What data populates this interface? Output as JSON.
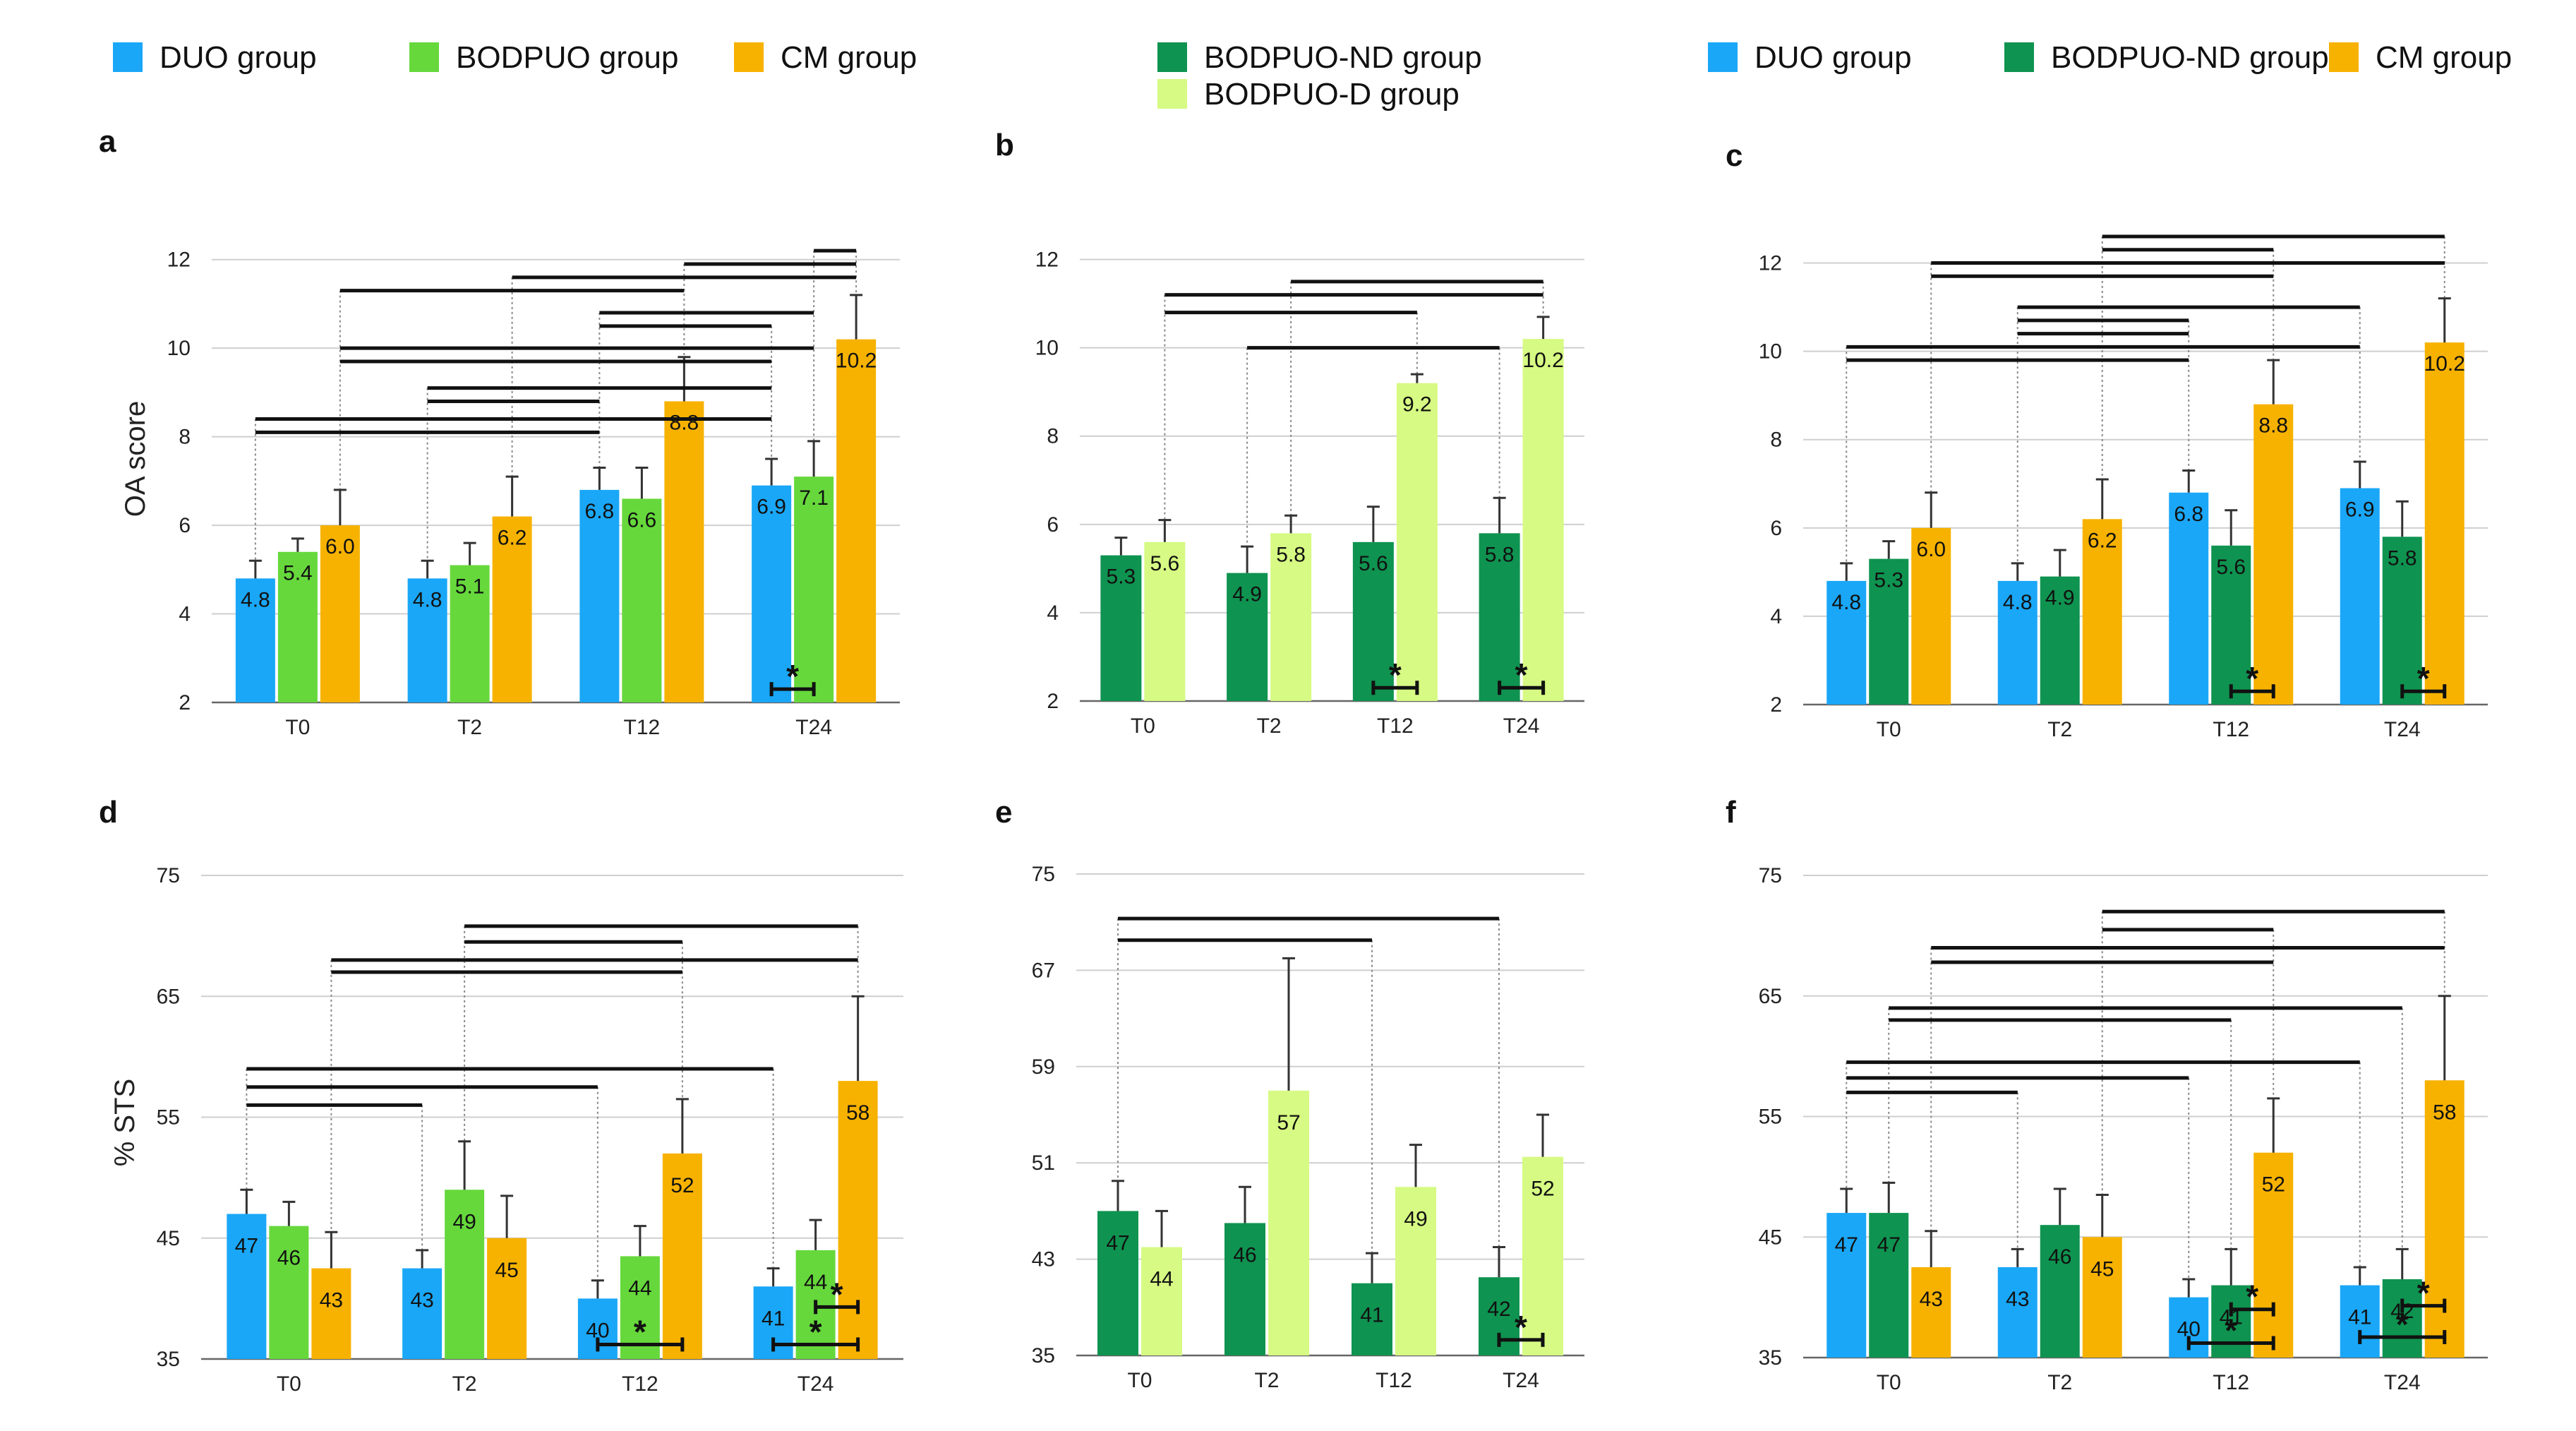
{
  "colors": {
    "DUO": "#1AA7F7",
    "BODPUO": "#66D83C",
    "CM": "#F7B200",
    "BODPUO-ND": "#0F9350",
    "BODPUO-D": "#D6FA83"
  },
  "legends": [
    {
      "entries": [
        {
          "label": "DUO group",
          "key": "DUO"
        },
        {
          "label": "BODPUO group",
          "key": "BODPUO"
        },
        {
          "label": "CM group",
          "key": "CM"
        }
      ]
    },
    {
      "entries": [
        {
          "label": "BODPUO-ND group",
          "key": "BODPUO-ND"
        },
        {
          "label": "BODPUO-D group",
          "key": "BODPUO-D"
        }
      ]
    },
    {
      "entries": [
        {
          "label": "DUO group",
          "key": "DUO"
        },
        {
          "label": "BODPUO-ND group",
          "key": "BODPUO-ND"
        },
        {
          "label": "CM group",
          "key": "CM"
        }
      ]
    }
  ],
  "chart_data": [
    {
      "panel": "a",
      "type": "bar",
      "ylabel": "OA score",
      "ylim": [
        2,
        13
      ],
      "yticks": [
        2,
        4,
        6,
        8,
        10,
        12
      ],
      "categories": [
        "T0",
        "T2",
        "T12",
        "T24"
      ],
      "series": [
        {
          "name": "DUO group",
          "key": "DUO",
          "values": [
            4.8,
            4.8,
            6.8,
            6.9
          ],
          "errors": [
            0.4,
            0.4,
            0.5,
            0.6
          ],
          "labels": [
            "4.8",
            "4.8",
            "6.8",
            "6.9"
          ]
        },
        {
          "name": "BODPUO group",
          "key": "BODPUO",
          "values": [
            5.4,
            5.1,
            6.6,
            7.1
          ],
          "errors": [
            0.3,
            0.5,
            0.7,
            0.8
          ],
          "labels": [
            "5.4",
            "5.1",
            "6.6",
            "7.1"
          ]
        },
        {
          "name": "CM group",
          "key": "CM",
          "values": [
            6.0,
            6.2,
            8.8,
            10.2
          ],
          "errors": [
            0.8,
            0.9,
            1.0,
            1.0
          ],
          "labels": [
            "6.0",
            "6.2",
            "8.8",
            "10.2"
          ]
        }
      ],
      "significance_brackets": [
        {
          "from": [
            3,
            1
          ],
          "to": [
            3,
            2
          ],
          "y": 12.2
        },
        {
          "from": [
            2,
            2
          ],
          "to": [
            3,
            2
          ],
          "y": 11.9
        },
        {
          "from": [
            1,
            2
          ],
          "to": [
            3,
            2
          ],
          "y": 11.6
        },
        {
          "from": [
            0,
            2
          ],
          "to": [
            2,
            2
          ],
          "y": 11.3
        },
        {
          "from": [
            2,
            0
          ],
          "to": [
            3,
            1
          ],
          "y": 10.8
        },
        {
          "from": [
            2,
            0
          ],
          "to": [
            3,
            0
          ],
          "y": 10.5
        },
        {
          "from": [
            0,
            2
          ],
          "to": [
            3,
            1
          ],
          "y": 10.0
        },
        {
          "from": [
            0,
            2
          ],
          "to": [
            3,
            0
          ],
          "y": 9.7
        },
        {
          "from": [
            1,
            0
          ],
          "to": [
            3,
            0
          ],
          "y": 9.1
        },
        {
          "from": [
            1,
            0
          ],
          "to": [
            2,
            0
          ],
          "y": 8.8
        },
        {
          "from": [
            0,
            0
          ],
          "to": [
            3,
            0
          ],
          "y": 8.4
        },
        {
          "from": [
            0,
            0
          ],
          "to": [
            2,
            0
          ],
          "y": 8.1
        }
      ],
      "stars": [
        {
          "cat": 3,
          "from": 0,
          "to": 1,
          "y": 2.3,
          "label": "*"
        }
      ]
    },
    {
      "panel": "b",
      "type": "bar",
      "ylabel": "",
      "ylim": [
        2,
        13
      ],
      "yticks": [
        2,
        4,
        6,
        8,
        10,
        12
      ],
      "categories": [
        "T0",
        "T2",
        "T12",
        "T24"
      ],
      "series": [
        {
          "name": "BODPUO-ND group",
          "key": "BODPUO-ND",
          "values": [
            5.3,
            4.9,
            5.6,
            5.8
          ],
          "errors": [
            0.4,
            0.6,
            0.8,
            0.8
          ],
          "labels": [
            "5.3",
            "4.9",
            "5.6",
            "5.8"
          ]
        },
        {
          "name": "BODPUO-D group",
          "key": "BODPUO-D",
          "values": [
            5.6,
            5.8,
            9.2,
            10.2
          ],
          "errors": [
            0.5,
            0.4,
            0.2,
            0.5
          ],
          "labels": [
            "5.6",
            "5.8",
            "9.2",
            "10.2"
          ]
        }
      ],
      "significance_brackets": [
        {
          "from": [
            1,
            1
          ],
          "to": [
            3,
            1
          ],
          "y": 11.5
        },
        {
          "from": [
            0,
            1
          ],
          "to": [
            3,
            1
          ],
          "y": 11.2
        },
        {
          "from": [
            0,
            1
          ],
          "to": [
            2,
            1
          ],
          "y": 10.8
        },
        {
          "from": [
            1,
            0
          ],
          "to": [
            3,
            0
          ],
          "y": 10.0
        }
      ],
      "stars": [
        {
          "cat": 2,
          "from": 0,
          "to": 1,
          "y": 2.3,
          "label": "*"
        },
        {
          "cat": 3,
          "from": 0,
          "to": 1,
          "y": 2.3,
          "label": "*"
        }
      ]
    },
    {
      "panel": "c",
      "type": "bar",
      "ylabel": "",
      "ylim": [
        2,
        13
      ],
      "yticks": [
        2,
        4,
        6,
        8,
        10,
        12
      ],
      "categories": [
        "T0",
        "T2",
        "T12",
        "T24"
      ],
      "series": [
        {
          "name": "DUO group",
          "key": "DUO",
          "values": [
            4.8,
            4.8,
            6.8,
            6.9
          ],
          "errors": [
            0.4,
            0.4,
            0.5,
            0.6
          ],
          "labels": [
            "4.8",
            "4.8",
            "6.8",
            "6.9"
          ]
        },
        {
          "name": "BODPUO-ND group",
          "key": "BODPUO-ND",
          "values": [
            5.3,
            4.9,
            5.6,
            5.8
          ],
          "errors": [
            0.4,
            0.6,
            0.8,
            0.8
          ],
          "labels": [
            "5.3",
            "4.9",
            "5.6",
            "5.8"
          ]
        },
        {
          "name": "CM group",
          "key": "CM",
          "values": [
            6.0,
            6.2,
            8.8,
            10.2
          ],
          "errors": [
            0.8,
            0.9,
            1.0,
            1.0
          ],
          "labels": [
            "6.0",
            "6.2",
            "8.8",
            "10.2"
          ]
        }
      ],
      "significance_brackets": [
        {
          "from": [
            1,
            2
          ],
          "to": [
            3,
            2
          ],
          "y": 12.6
        },
        {
          "from": [
            1,
            2
          ],
          "to": [
            2,
            2
          ],
          "y": 12.3
        },
        {
          "from": [
            1,
            2
          ],
          "to": [
            3,
            2
          ],
          "y": 12.0
        },
        {
          "from": [
            0,
            2
          ],
          "to": [
            3,
            2
          ],
          "y": 12.0
        },
        {
          "from": [
            0,
            2
          ],
          "to": [
            2,
            2
          ],
          "y": 11.7
        },
        {
          "from": [
            1,
            0
          ],
          "to": [
            3,
            0
          ],
          "y": 11.0
        },
        {
          "from": [
            1,
            0
          ],
          "to": [
            2,
            0
          ],
          "y": 10.7
        },
        {
          "from": [
            1,
            0
          ],
          "to": [
            2,
            0
          ],
          "y": 10.4
        },
        {
          "from": [
            0,
            0
          ],
          "to": [
            3,
            0
          ],
          "y": 10.1
        },
        {
          "from": [
            0,
            0
          ],
          "to": [
            2,
            0
          ],
          "y": 9.8
        }
      ],
      "stars": [
        {
          "cat": 2,
          "from": 1,
          "to": 2,
          "y": 2.3,
          "label": "*"
        },
        {
          "cat": 3,
          "from": 1,
          "to": 2,
          "y": 2.3,
          "label": "*"
        }
      ]
    },
    {
      "panel": "d",
      "type": "bar",
      "ylabel": "% STS",
      "ylim": [
        35,
        75
      ],
      "yticks": [
        35,
        45,
        55,
        65,
        75
      ],
      "categories": [
        "T0",
        "T2",
        "T12",
        "T24"
      ],
      "series": [
        {
          "name": "DUO group",
          "key": "DUO",
          "values": [
            47,
            42.5,
            40,
            41
          ],
          "errors": [
            2,
            1.5,
            1.5,
            1.5
          ],
          "labels": [
            "47",
            "43",
            "40",
            "41"
          ]
        },
        {
          "name": "BODPUO group",
          "key": "BODPUO",
          "values": [
            46,
            49,
            43.5,
            44
          ],
          "errors": [
            2,
            4,
            2.5,
            2.5
          ],
          "labels": [
            "46",
            "49",
            "44",
            "44"
          ]
        },
        {
          "name": "CM group",
          "key": "CM",
          "values": [
            42.5,
            45,
            52,
            58
          ],
          "errors": [
            3,
            3.5,
            4.5,
            7
          ],
          "labels": [
            "43",
            "45",
            "52",
            "58"
          ]
        }
      ],
      "significance_brackets": [
        {
          "from": [
            1,
            1
          ],
          "to": [
            3,
            2
          ],
          "y": 70.8
        },
        {
          "from": [
            1,
            1
          ],
          "to": [
            2,
            2
          ],
          "y": 69.5
        },
        {
          "from": [
            0,
            2
          ],
          "to": [
            3,
            2
          ],
          "y": 68.0
        },
        {
          "from": [
            0,
            2
          ],
          "to": [
            2,
            2
          ],
          "y": 67.0
        },
        {
          "from": [
            0,
            0
          ],
          "to": [
            3,
            0
          ],
          "y": 59.0
        },
        {
          "from": [
            0,
            0
          ],
          "to": [
            2,
            0
          ],
          "y": 57.5
        },
        {
          "from": [
            0,
            0
          ],
          "to": [
            1,
            0
          ],
          "y": 56.0
        }
      ],
      "stars": [
        {
          "cat": 2,
          "from": 0,
          "to": 2,
          "y": 36.2,
          "label": "*"
        },
        {
          "cat": 3,
          "from": 0,
          "to": 2,
          "y": 36.2,
          "label": "*"
        },
        {
          "cat": 3,
          "from": 1,
          "to": 2,
          "y": 39.3,
          "label": "*"
        }
      ]
    },
    {
      "panel": "e",
      "type": "bar",
      "ylabel": "",
      "ylim": [
        35,
        75
      ],
      "yticks": [
        35,
        43,
        51,
        59,
        67,
        75
      ],
      "categories": [
        "T0",
        "T2",
        "T12",
        "T24"
      ],
      "series": [
        {
          "name": "BODPUO-ND group",
          "key": "BODPUO-ND",
          "values": [
            47,
            46,
            41,
            41.5
          ],
          "errors": [
            2.5,
            3,
            2.5,
            2.5
          ],
          "labels": [
            "47",
            "46",
            "41",
            "42"
          ]
        },
        {
          "name": "BODPUO-D group",
          "key": "BODPUO-D",
          "values": [
            44,
            57,
            49,
            51.5
          ],
          "errors": [
            3,
            11,
            3.5,
            3.5
          ],
          "labels": [
            "44",
            "57",
            "49",
            "52"
          ]
        }
      ],
      "significance_brackets": [
        {
          "from": [
            0,
            0
          ],
          "to": [
            3,
            0
          ],
          "y": 71.3
        },
        {
          "from": [
            0,
            0
          ],
          "to": [
            2,
            0
          ],
          "y": 69.5
        }
      ],
      "stars": [
        {
          "cat": 3,
          "from": 0,
          "to": 1,
          "y": 36.3,
          "label": "*"
        }
      ]
    },
    {
      "panel": "f",
      "type": "bar",
      "ylabel": "",
      "ylim": [
        35,
        75
      ],
      "yticks": [
        35,
        45,
        55,
        65,
        75
      ],
      "categories": [
        "T0",
        "T2",
        "T12",
        "T24"
      ],
      "series": [
        {
          "name": "DUO group",
          "key": "DUO",
          "values": [
            47,
            42.5,
            40,
            41
          ],
          "errors": [
            2,
            1.5,
            1.5,
            1.5
          ],
          "labels": [
            "47",
            "43",
            "40",
            "41"
          ]
        },
        {
          "name": "BODPUO-ND group",
          "key": "BODPUO-ND",
          "values": [
            47,
            46,
            41,
            41.5
          ],
          "errors": [
            2.5,
            3,
            3,
            2.5
          ],
          "labels": [
            "47",
            "46",
            "41",
            "42"
          ]
        },
        {
          "name": "CM group",
          "key": "CM",
          "values": [
            42.5,
            45,
            52,
            58
          ],
          "errors": [
            3,
            3.5,
            4.5,
            7
          ],
          "labels": [
            "43",
            "45",
            "52",
            "58"
          ]
        }
      ],
      "significance_brackets": [
        {
          "from": [
            1,
            2
          ],
          "to": [
            3,
            2
          ],
          "y": 72.0
        },
        {
          "from": [
            1,
            2
          ],
          "to": [
            2,
            2
          ],
          "y": 70.5
        },
        {
          "from": [
            0,
            2
          ],
          "to": [
            3,
            2
          ],
          "y": 69.0
        },
        {
          "from": [
            0,
            2
          ],
          "to": [
            2,
            2
          ],
          "y": 67.8
        },
        {
          "from": [
            0,
            1
          ],
          "to": [
            3,
            1
          ],
          "y": 64.0
        },
        {
          "from": [
            0,
            1
          ],
          "to": [
            2,
            1
          ],
          "y": 63.0
        },
        {
          "from": [
            0,
            0
          ],
          "to": [
            3,
            0
          ],
          "y": 59.5
        },
        {
          "from": [
            0,
            0
          ],
          "to": [
            2,
            0
          ],
          "y": 58.2
        },
        {
          "from": [
            0,
            0
          ],
          "to": [
            1,
            0
          ],
          "y": 57.0
        }
      ],
      "stars": [
        {
          "cat": 2,
          "from": 0,
          "to": 2,
          "y": 36.2,
          "label": "*"
        },
        {
          "cat": 2,
          "from": 1,
          "to": 2,
          "y": 39.0,
          "label": "*"
        },
        {
          "cat": 3,
          "from": 0,
          "to": 2,
          "y": 36.7,
          "label": "*"
        },
        {
          "cat": 3,
          "from": 1,
          "to": 2,
          "y": 39.3,
          "label": "*"
        }
      ]
    }
  ]
}
